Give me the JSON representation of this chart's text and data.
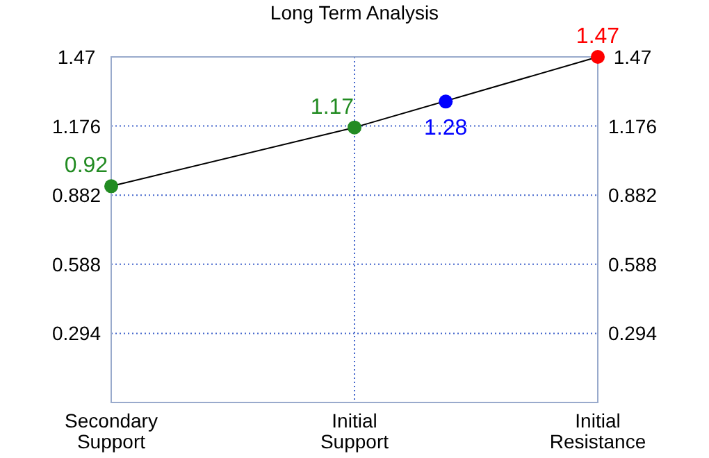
{
  "chart_data": {
    "type": "line",
    "title": "Long Term Analysis",
    "categories": [
      "Secondary Support",
      null,
      null,
      null,
      null,
      null,
      null,
      null,
      "Initial Support",
      null,
      null,
      null,
      null,
      null,
      null,
      null,
      "Initial Resistance"
    ],
    "ylim": [
      0,
      1.47
    ],
    "yticks": [
      0.294,
      0.588,
      0.882,
      1.176,
      1.47
    ],
    "y2lim": [
      0,
      1.47
    ],
    "y2ticks": [
      0.294,
      0.588,
      0.882,
      1.176,
      1.47
    ],
    "grid": true,
    "data_labels": true,
    "series": [
      {
        "color": "#000000",
        "colors": [
          "#228b22",
          "#228b22",
          "#ff0000"
        ],
        "x": [
          "Secondary Support",
          "Initial Support",
          "Initial Resistance"
        ],
        "values": [
          0.92,
          1.17,
          1.47
        ],
        "marker": "circle"
      },
      {
        "type": "scatter",
        "color": "#0000ff",
        "values": [
          null,
          null,
          null,
          null,
          null,
          null,
          null,
          null,
          null,
          null,
          null,
          1.28,
          null,
          null,
          null,
          null,
          null
        ],
        "marker": "circle"
      }
    ]
  }
}
